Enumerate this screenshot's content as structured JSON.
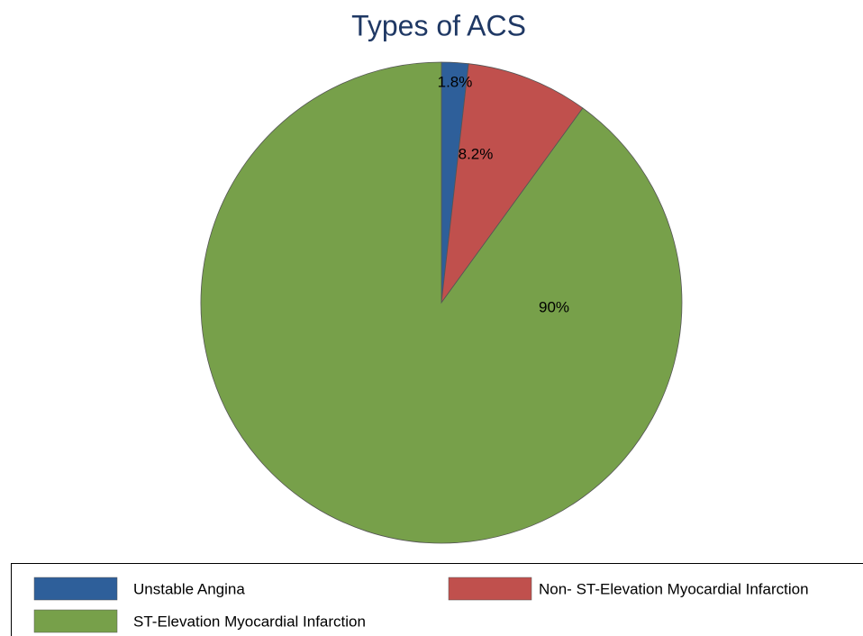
{
  "chart_data": {
    "type": "pie",
    "title": "Types of ACS",
    "categories": [
      "Unstable Angina",
      "Non- ST-Elevation Myocardial Infarction",
      "ST-Elevation Myocardial Infarction"
    ],
    "values": [
      1.8,
      8.2,
      90
    ],
    "value_labels": [
      "1.8%",
      "8.2%",
      "90%"
    ],
    "colors": [
      "#2e5f9a",
      "#c0504d",
      "#77a04a"
    ],
    "legend": "bottom"
  }
}
